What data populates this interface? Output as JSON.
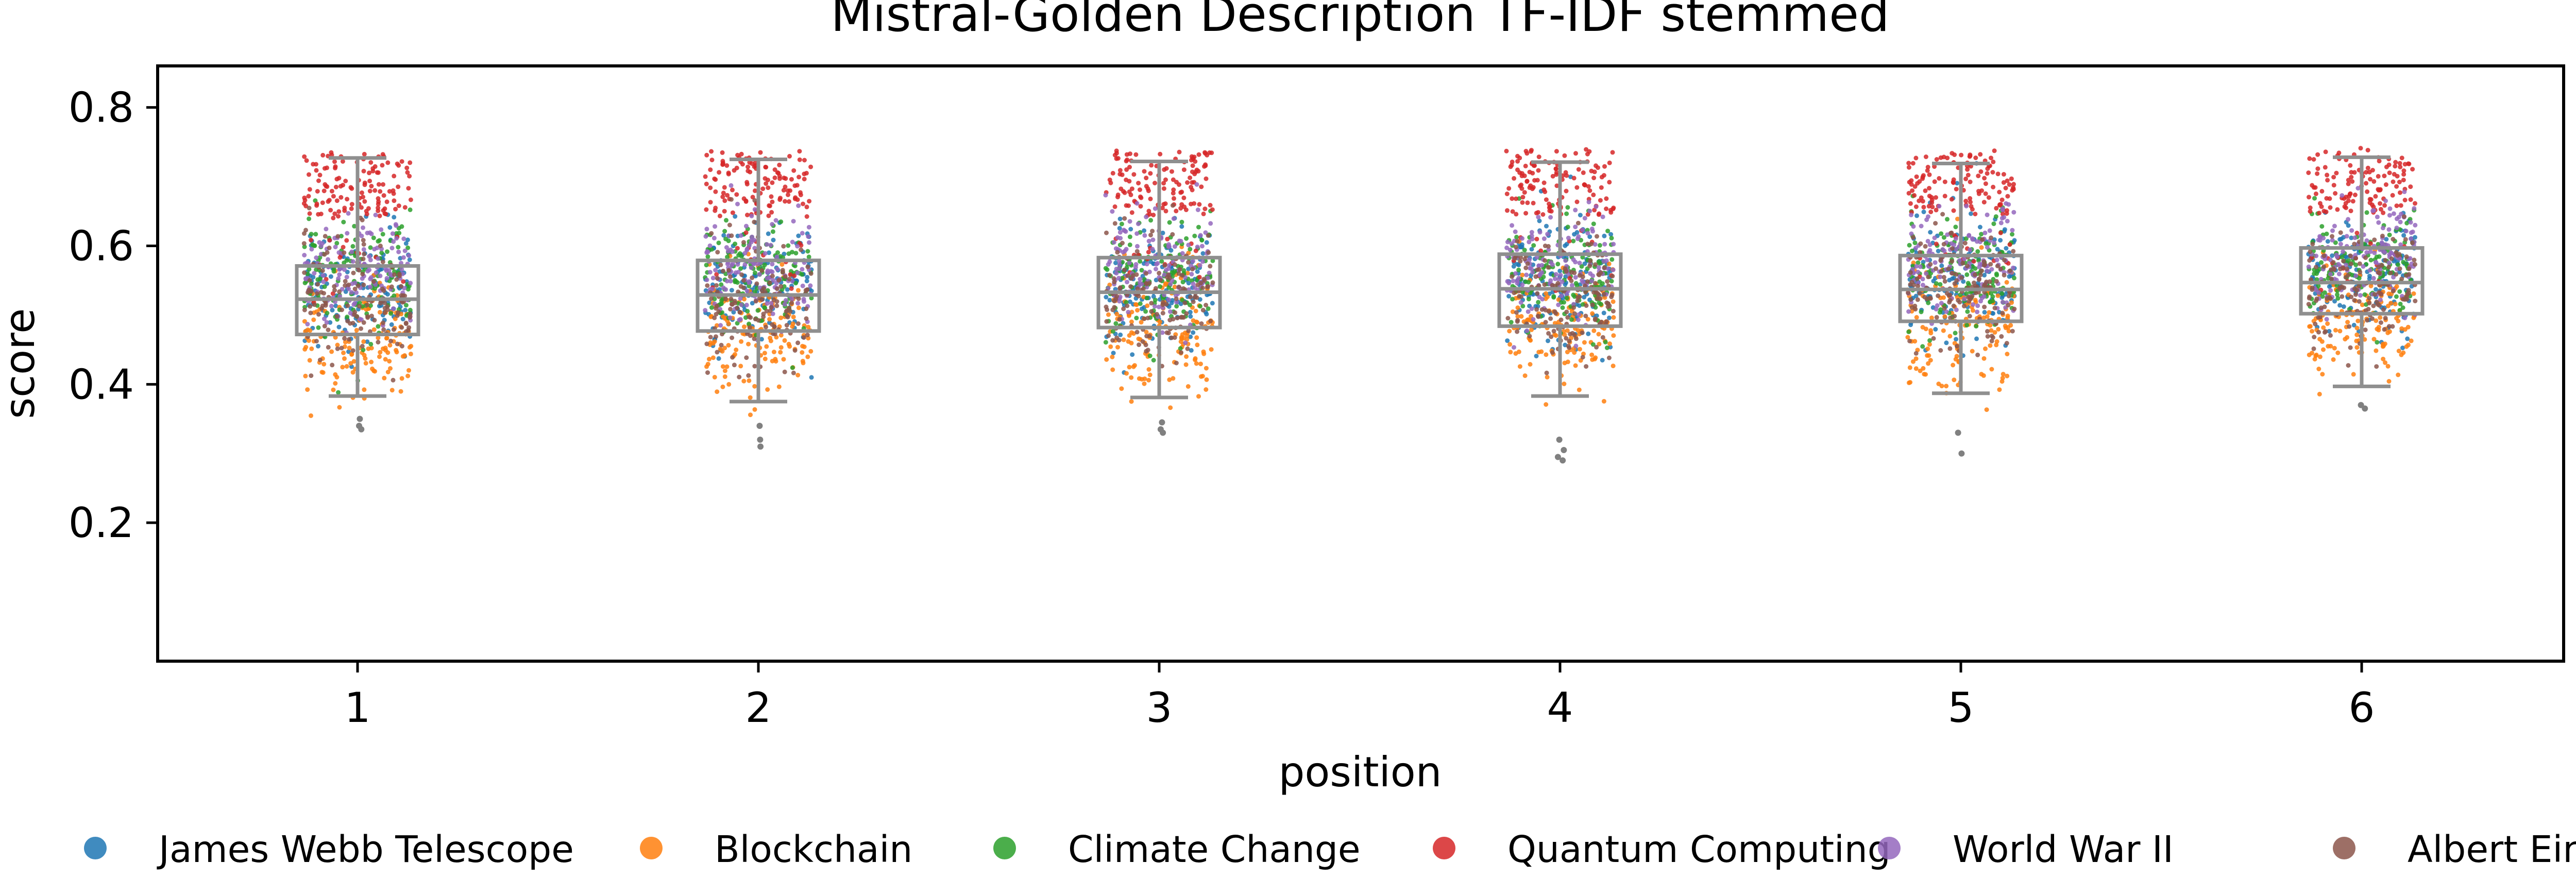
{
  "chart_data": {
    "type": "scatter",
    "subtype": "box-strip",
    "title": "Mistral-Golden Description TF-IDF stemmed",
    "xlabel": "position",
    "ylabel": "score",
    "categories": [
      "1",
      "2",
      "3",
      "4",
      "5",
      "6"
    ],
    "ylim": [
      0,
      0.86
    ],
    "yticks": [
      "0.2",
      "0.4",
      "0.6",
      "0.8"
    ],
    "ytick_values": [
      0.2,
      0.4,
      0.6,
      0.8
    ],
    "grid": false,
    "legend_position": "bottom",
    "boxes": [
      {
        "position": "1",
        "whisker_low": 0.383,
        "q1": 0.472,
        "median": 0.523,
        "q3": 0.571,
        "whisker_high": 0.727
      },
      {
        "position": "2",
        "whisker_low": 0.375,
        "q1": 0.477,
        "median": 0.529,
        "q3": 0.579,
        "whisker_high": 0.725
      },
      {
        "position": "3",
        "whisker_low": 0.381,
        "q1": 0.482,
        "median": 0.533,
        "q3": 0.583,
        "whisker_high": 0.722
      },
      {
        "position": "4",
        "whisker_low": 0.383,
        "q1": 0.484,
        "median": 0.538,
        "q3": 0.588,
        "whisker_high": 0.721
      },
      {
        "position": "5",
        "whisker_low": 0.387,
        "q1": 0.491,
        "median": 0.537,
        "q3": 0.586,
        "whisker_high": 0.719
      },
      {
        "position": "6",
        "whisker_low": 0.397,
        "q1": 0.502,
        "median": 0.547,
        "q3": 0.597,
        "whisker_high": 0.728
      }
    ],
    "series": [
      {
        "name": "James Webb Telescope",
        "color": "#1f77b4",
        "center": 0.535,
        "spread": 0.045
      },
      {
        "name": "Blockchain",
        "color": "#ff7f0e",
        "center": 0.468,
        "spread": 0.045
      },
      {
        "name": "Climate Change",
        "color": "#2ca02c",
        "center": 0.548,
        "spread": 0.04
      },
      {
        "name": "Quantum Computing",
        "color": "#d62728",
        "center": 0.675,
        "spread": 0.035
      },
      {
        "name": "World War II",
        "color": "#9467bd",
        "center": 0.562,
        "spread": 0.04
      },
      {
        "name": "Albert Einstein",
        "color": "#8c564b",
        "center": 0.518,
        "spread": 0.045
      }
    ],
    "outliers": [
      {
        "position": "1",
        "values": [
          0.335,
          0.34,
          0.35
        ]
      },
      {
        "position": "2",
        "values": [
          0.31,
          0.32,
          0.34
        ]
      },
      {
        "position": "3",
        "values": [
          0.33,
          0.335,
          0.345
        ]
      },
      {
        "position": "4",
        "values": [
          0.29,
          0.295,
          0.305,
          0.32
        ]
      },
      {
        "position": "5",
        "values": [
          0.3,
          0.33
        ]
      },
      {
        "position": "6",
        "values": [
          0.365,
          0.37
        ]
      }
    ]
  }
}
